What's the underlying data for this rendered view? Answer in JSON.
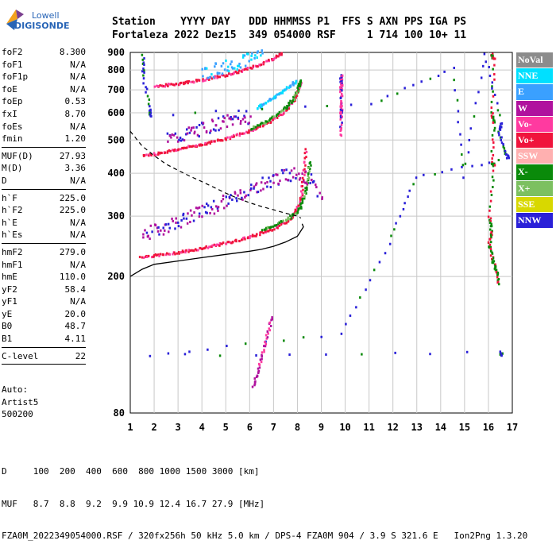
{
  "logo": {
    "line1": "Lowell",
    "line2": "DIGISONDE"
  },
  "header": {
    "line1": "Station    YYYY DAY   DDD HHMMSS P1  FFS S AXN PPS IGA PS",
    "line2": "Fortaleza 2022 Dez15  349 054000 RSF     1 714 100 10+ 11"
  },
  "params": {
    "group1": [
      {
        "name": "foF2",
        "value": "8.300"
      },
      {
        "name": "foF1",
        "value": "N/A"
      },
      {
        "name": "foF1p",
        "value": "N/A"
      },
      {
        "name": "foE",
        "value": "N/A"
      },
      {
        "name": "foEp",
        "value": "0.53"
      },
      {
        "name": "fxI",
        "value": "8.70"
      },
      {
        "name": "foEs",
        "value": "N/A"
      },
      {
        "name": "fmin",
        "value": "1.20"
      }
    ],
    "group2": [
      {
        "name": "MUF(D)",
        "value": "27.93"
      },
      {
        "name": "M(D)",
        "value": "3.36"
      },
      {
        "name": "D",
        "value": "N/A"
      }
    ],
    "group3": [
      {
        "name": "h`F",
        "value": "225.0"
      },
      {
        "name": "h`F2",
        "value": "225.0"
      },
      {
        "name": "h`E",
        "value": "N/A"
      },
      {
        "name": "h`Es",
        "value": "N/A"
      }
    ],
    "group4": [
      {
        "name": "hmF2",
        "value": "279.0"
      },
      {
        "name": "hmF1",
        "value": "N/A"
      },
      {
        "name": "hmE",
        "value": "110.0"
      },
      {
        "name": "yF2",
        "value": "58.4"
      },
      {
        "name": "yF1",
        "value": "N/A"
      },
      {
        "name": "yE",
        "value": "20.0"
      },
      {
        "name": "B0",
        "value": "48.7"
      },
      {
        "name": "B1",
        "value": "4.11"
      }
    ],
    "group5": [
      {
        "name": "C-level",
        "value": "22"
      }
    ]
  },
  "auto": {
    "line1": "Auto:",
    "line2": "Artist5",
    "line3": "500200"
  },
  "legend": [
    {
      "label": "NoVal",
      "color": "#8c8c8c"
    },
    {
      "label": "NNE",
      "color": "#00e0ff"
    },
    {
      "label": "E",
      "color": "#3aa0ff"
    },
    {
      "label": "W",
      "color": "#b0129e"
    },
    {
      "label": "Vo-",
      "color": "#ff3aa0"
    },
    {
      "label": "Vo+",
      "color": "#f0143c"
    },
    {
      "label": "SSW",
      "color": "#ffb0b0"
    },
    {
      "label": "X-",
      "color": "#0a8a0a"
    },
    {
      "label": "X+",
      "color": "#7cc060"
    },
    {
      "label": "SSE",
      "color": "#d8d800"
    },
    {
      "label": "NNW",
      "color": "#2a20d8"
    }
  ],
  "footer": {
    "line1": "D     100  200  400  600  800 1000 1500 3000 [km]",
    "line2": "MUF   8.7  8.8  9.2  9.9 10.9 12.4 16.7 27.9 [MHz]",
    "line3": "FZA0M_2022349054000.RSF / 320fx256h 50 kHz 5.0 km / DPS-4 FZA0M 904 / 3.9 S 321.6 E   Ion2Png 1.3.20"
  },
  "chart_data": {
    "type": "scatter",
    "title": "",
    "xlabel": "",
    "ylabel": "",
    "xlim": [
      1,
      17
    ],
    "ylim": [
      80,
      900
    ],
    "y_scale": "log",
    "x_ticks": [
      1,
      2,
      3,
      4,
      5,
      6,
      7,
      8,
      9,
      10,
      11,
      12,
      13,
      14,
      15,
      16,
      17
    ],
    "y_ticks": [
      80,
      200,
      300,
      400,
      500,
      600,
      700,
      800,
      900
    ],
    "grid": true,
    "legend_position": "right",
    "traces": [
      {
        "id": "F-1hop-O",
        "color": "#f0143c",
        "alt_color": "#ff3aa0",
        "points": [
          [
            1.4,
            228
          ],
          [
            2,
            230
          ],
          [
            2.5,
            232
          ],
          [
            3,
            235
          ],
          [
            3.5,
            238
          ],
          [
            4,
            242
          ],
          [
            4.5,
            246
          ],
          [
            5,
            250
          ],
          [
            5.5,
            255
          ],
          [
            6,
            261
          ],
          [
            6.5,
            268
          ],
          [
            7,
            276
          ],
          [
            7.5,
            288
          ],
          [
            7.8,
            300
          ],
          [
            8,
            320
          ],
          [
            8.15,
            350
          ],
          [
            8.25,
            400
          ],
          [
            8.3,
            470
          ]
        ]
      },
      {
        "id": "F-1hop-X",
        "color": "#0a8a0a",
        "alt_color": "#7cc060",
        "points": [
          [
            6.5,
            272
          ],
          [
            7,
            282
          ],
          [
            7.5,
            292
          ],
          [
            7.9,
            305
          ],
          [
            8.1,
            320
          ],
          [
            8.3,
            350
          ],
          [
            8.4,
            390
          ],
          [
            8.5,
            430
          ]
        ]
      },
      {
        "id": "F-spread-W",
        "color": "#b0129e",
        "alt_color": "#2a20d8",
        "points": [
          [
            1.5,
            265
          ],
          [
            2,
            272
          ],
          [
            2.5,
            280
          ],
          [
            3,
            290
          ],
          [
            3.5,
            300
          ],
          [
            4,
            310
          ],
          [
            4.5,
            320
          ],
          [
            5,
            332
          ],
          [
            5.5,
            345
          ],
          [
            6,
            358
          ],
          [
            6.5,
            372
          ],
          [
            7,
            385
          ],
          [
            7.5,
            395
          ],
          [
            8,
            400
          ],
          [
            8.5,
            380
          ],
          [
            9,
            340
          ]
        ]
      },
      {
        "id": "F-2hop-O",
        "color": "#f0143c",
        "alt_color": "#ff3aa0",
        "points": [
          [
            1.5,
            450
          ],
          [
            2,
            455
          ],
          [
            2.5,
            462
          ],
          [
            3,
            470
          ],
          [
            3.5,
            478
          ],
          [
            4,
            486
          ],
          [
            4.5,
            495
          ],
          [
            5,
            505
          ],
          [
            5.5,
            518
          ],
          [
            6,
            532
          ],
          [
            6.5,
            550
          ],
          [
            7,
            575
          ],
          [
            7.5,
            610
          ],
          [
            7.8,
            650
          ],
          [
            8,
            700
          ],
          [
            8.1,
            740
          ]
        ]
      },
      {
        "id": "F-2hop-X",
        "color": "#0a8a0a",
        "alt_color": "#7cc060",
        "points": [
          [
            6,
            540
          ],
          [
            6.5,
            558
          ],
          [
            7,
            585
          ],
          [
            7.5,
            622
          ],
          [
            7.8,
            660
          ],
          [
            8,
            705
          ],
          [
            8.1,
            745
          ]
        ]
      },
      {
        "id": "F-2hop-spread-W",
        "color": "#b0129e",
        "alt_color": "#2a20d8",
        "points": [
          [
            2.5,
            500
          ],
          [
            3,
            510
          ],
          [
            3.5,
            525
          ],
          [
            4,
            540
          ],
          [
            4.5,
            555
          ],
          [
            5,
            565
          ],
          [
            5.5,
            575
          ],
          [
            6,
            585
          ]
        ]
      },
      {
        "id": "F-3hop-O",
        "color": "#f0143c",
        "alt_color": "#ff3aa0",
        "points": [
          [
            2,
            715
          ],
          [
            2.5,
            722
          ],
          [
            3,
            730
          ],
          [
            3.5,
            738
          ],
          [
            4,
            748
          ],
          [
            4.5,
            760
          ],
          [
            5,
            772
          ],
          [
            5.5,
            790
          ],
          [
            6,
            810
          ],
          [
            6.5,
            835
          ],
          [
            7,
            865
          ],
          [
            7.3,
            895
          ]
        ]
      },
      {
        "id": "F-3hop-spread",
        "color": "#3aa0ff",
        "alt_color": "#00e0ff",
        "points": [
          [
            4,
            780
          ],
          [
            4.5,
            800
          ],
          [
            5,
            820
          ],
          [
            5.5,
            845
          ],
          [
            6,
            870
          ],
          [
            6.5,
            895
          ]
        ]
      },
      {
        "id": "NNE-upper",
        "color": "#00e0ff",
        "alt_color": "#3aa0ff",
        "points": [
          [
            6.3,
            620
          ],
          [
            6.6,
            640
          ],
          [
            7,
            665
          ],
          [
            7.3,
            690
          ],
          [
            7.6,
            715
          ],
          [
            7.9,
            740
          ]
        ]
      },
      {
        "id": "foF2-2hop-column",
        "color": "#ff3aa0",
        "alt_color": "#2a20d8",
        "points": [
          [
            9.8,
            770
          ],
          [
            9.8,
            745
          ],
          [
            9.8,
            720
          ],
          [
            9.8,
            700
          ],
          [
            9.8,
            640
          ],
          [
            9.8,
            610
          ],
          [
            9.8,
            585
          ],
          [
            9.8,
            515
          ]
        ]
      },
      {
        "id": "right-column-16",
        "color": "#0a8a0a",
        "alt_color": "#f0143c",
        "points": [
          [
            16.1,
            890
          ],
          [
            16.2,
            860
          ],
          [
            16.1,
            600
          ],
          [
            16.2,
            560
          ],
          [
            16.1,
            430
          ],
          [
            16.2,
            420
          ],
          [
            16.0,
            300
          ],
          [
            16.1,
            270
          ],
          [
            16.0,
            250
          ],
          [
            16.1,
            230
          ],
          [
            16.2,
            215
          ],
          [
            16.3,
            205
          ],
          [
            16.4,
            190
          ]
        ]
      },
      {
        "id": "isolated",
        "color": "#2a20d8",
        "alt_color": "#0a8a0a",
        "points": [
          [
            1.5,
            880
          ],
          [
            1.5,
            770
          ],
          [
            1.8,
            610
          ],
          [
            1.8,
            590
          ],
          [
            11.1,
            640
          ],
          [
            14.5,
            810
          ],
          [
            14.9,
            390
          ],
          [
            15.8,
            890
          ],
          [
            16.5,
            560
          ],
          [
            16.4,
            530
          ],
          [
            16.6,
            470
          ],
          [
            16.8,
            440
          ],
          [
            12.9,
            390
          ],
          [
            11.8,
            250
          ],
          [
            9.8,
            136
          ],
          [
            1.8,
            118
          ],
          [
            16.5,
            120
          ],
          [
            16.5,
            118
          ]
        ]
      },
      {
        "id": "Es-trace",
        "color": "#b0129e",
        "alt_color": "#ff3aa0",
        "points": [
          [
            6.1,
            96
          ],
          [
            6.3,
            105
          ],
          [
            6.5,
            118
          ],
          [
            6.7,
            135
          ],
          [
            6.9,
            152
          ]
        ]
      }
    ],
    "profile": {
      "color": "#000000",
      "points": [
        [
          1,
          200
        ],
        [
          1.5,
          210
        ],
        [
          2,
          217
        ],
        [
          3,
          222
        ],
        [
          4,
          227
        ],
        [
          5,
          232
        ],
        [
          6,
          237
        ],
        [
          6.5,
          240
        ],
        [
          7,
          245
        ],
        [
          7.5,
          252
        ],
        [
          8,
          262
        ],
        [
          8.15,
          272
        ],
        [
          8.25,
          279
        ],
        [
          8.2,
          285
        ]
      ]
    },
    "muf_curve": {
      "color": "#000000",
      "dash": true,
      "points": [
        [
          1,
          530
        ],
        [
          1.5,
          480
        ],
        [
          2,
          450
        ],
        [
          2.5,
          425
        ],
        [
          3,
          408
        ],
        [
          3.5,
          392
        ],
        [
          4,
          378
        ],
        [
          4.5,
          364
        ],
        [
          5,
          350
        ],
        [
          5.5,
          338
        ],
        [
          6,
          328
        ],
        [
          6.5,
          320
        ],
        [
          7,
          313
        ],
        [
          7.5,
          306
        ],
        [
          8,
          300
        ],
        [
          8.15,
          296
        ]
      ]
    }
  }
}
